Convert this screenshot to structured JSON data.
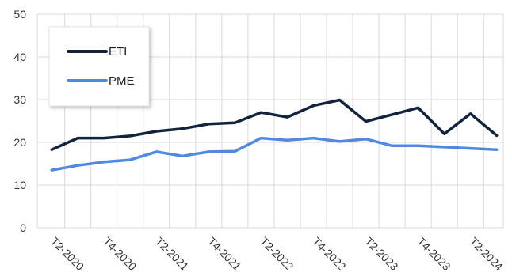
{
  "chart_data": {
    "type": "line",
    "title": "",
    "xlabel": "",
    "ylabel": "",
    "ylim": [
      0,
      50
    ],
    "yticks": [
      0,
      10,
      20,
      30,
      40,
      50
    ],
    "grid": true,
    "legend_position": "top-left",
    "x": [
      "T2-2020",
      "T3-2020",
      "T4-2020",
      "T1-2021",
      "T2-2021",
      "T3-2021",
      "T4-2021",
      "T1-2022",
      "T2-2022",
      "T3-2022",
      "T4-2022",
      "T1-2023",
      "T2-2023",
      "T3-2023",
      "T4-2023",
      "T1-2024",
      "T2-2024",
      "T3-2024"
    ],
    "x_tick_labels": [
      "T2-2020",
      "",
      "T4-2020",
      "",
      "T2-2021",
      "",
      "T4-2021",
      "",
      "T2-2022",
      "",
      "T4-2022",
      "",
      "T2-2023",
      "",
      "T4-2023",
      "",
      "T2-2024"
    ],
    "series": [
      {
        "name": "ETI",
        "color": "#12243d",
        "values": [
          18.3,
          21.0,
          21.0,
          21.5,
          22.6,
          23.2,
          24.3,
          24.6,
          27.0,
          25.9,
          28.6,
          29.9,
          24.9,
          26.5,
          28.1,
          22.0,
          26.7,
          21.6
        ]
      },
      {
        "name": "PME",
        "color": "#4f8ae0",
        "values": [
          13.5,
          14.6,
          15.4,
          15.9,
          17.8,
          16.8,
          17.8,
          17.9,
          21.0,
          20.5,
          21.0,
          20.2,
          20.8,
          19.2,
          19.2,
          18.9,
          18.6,
          18.3
        ]
      }
    ]
  }
}
